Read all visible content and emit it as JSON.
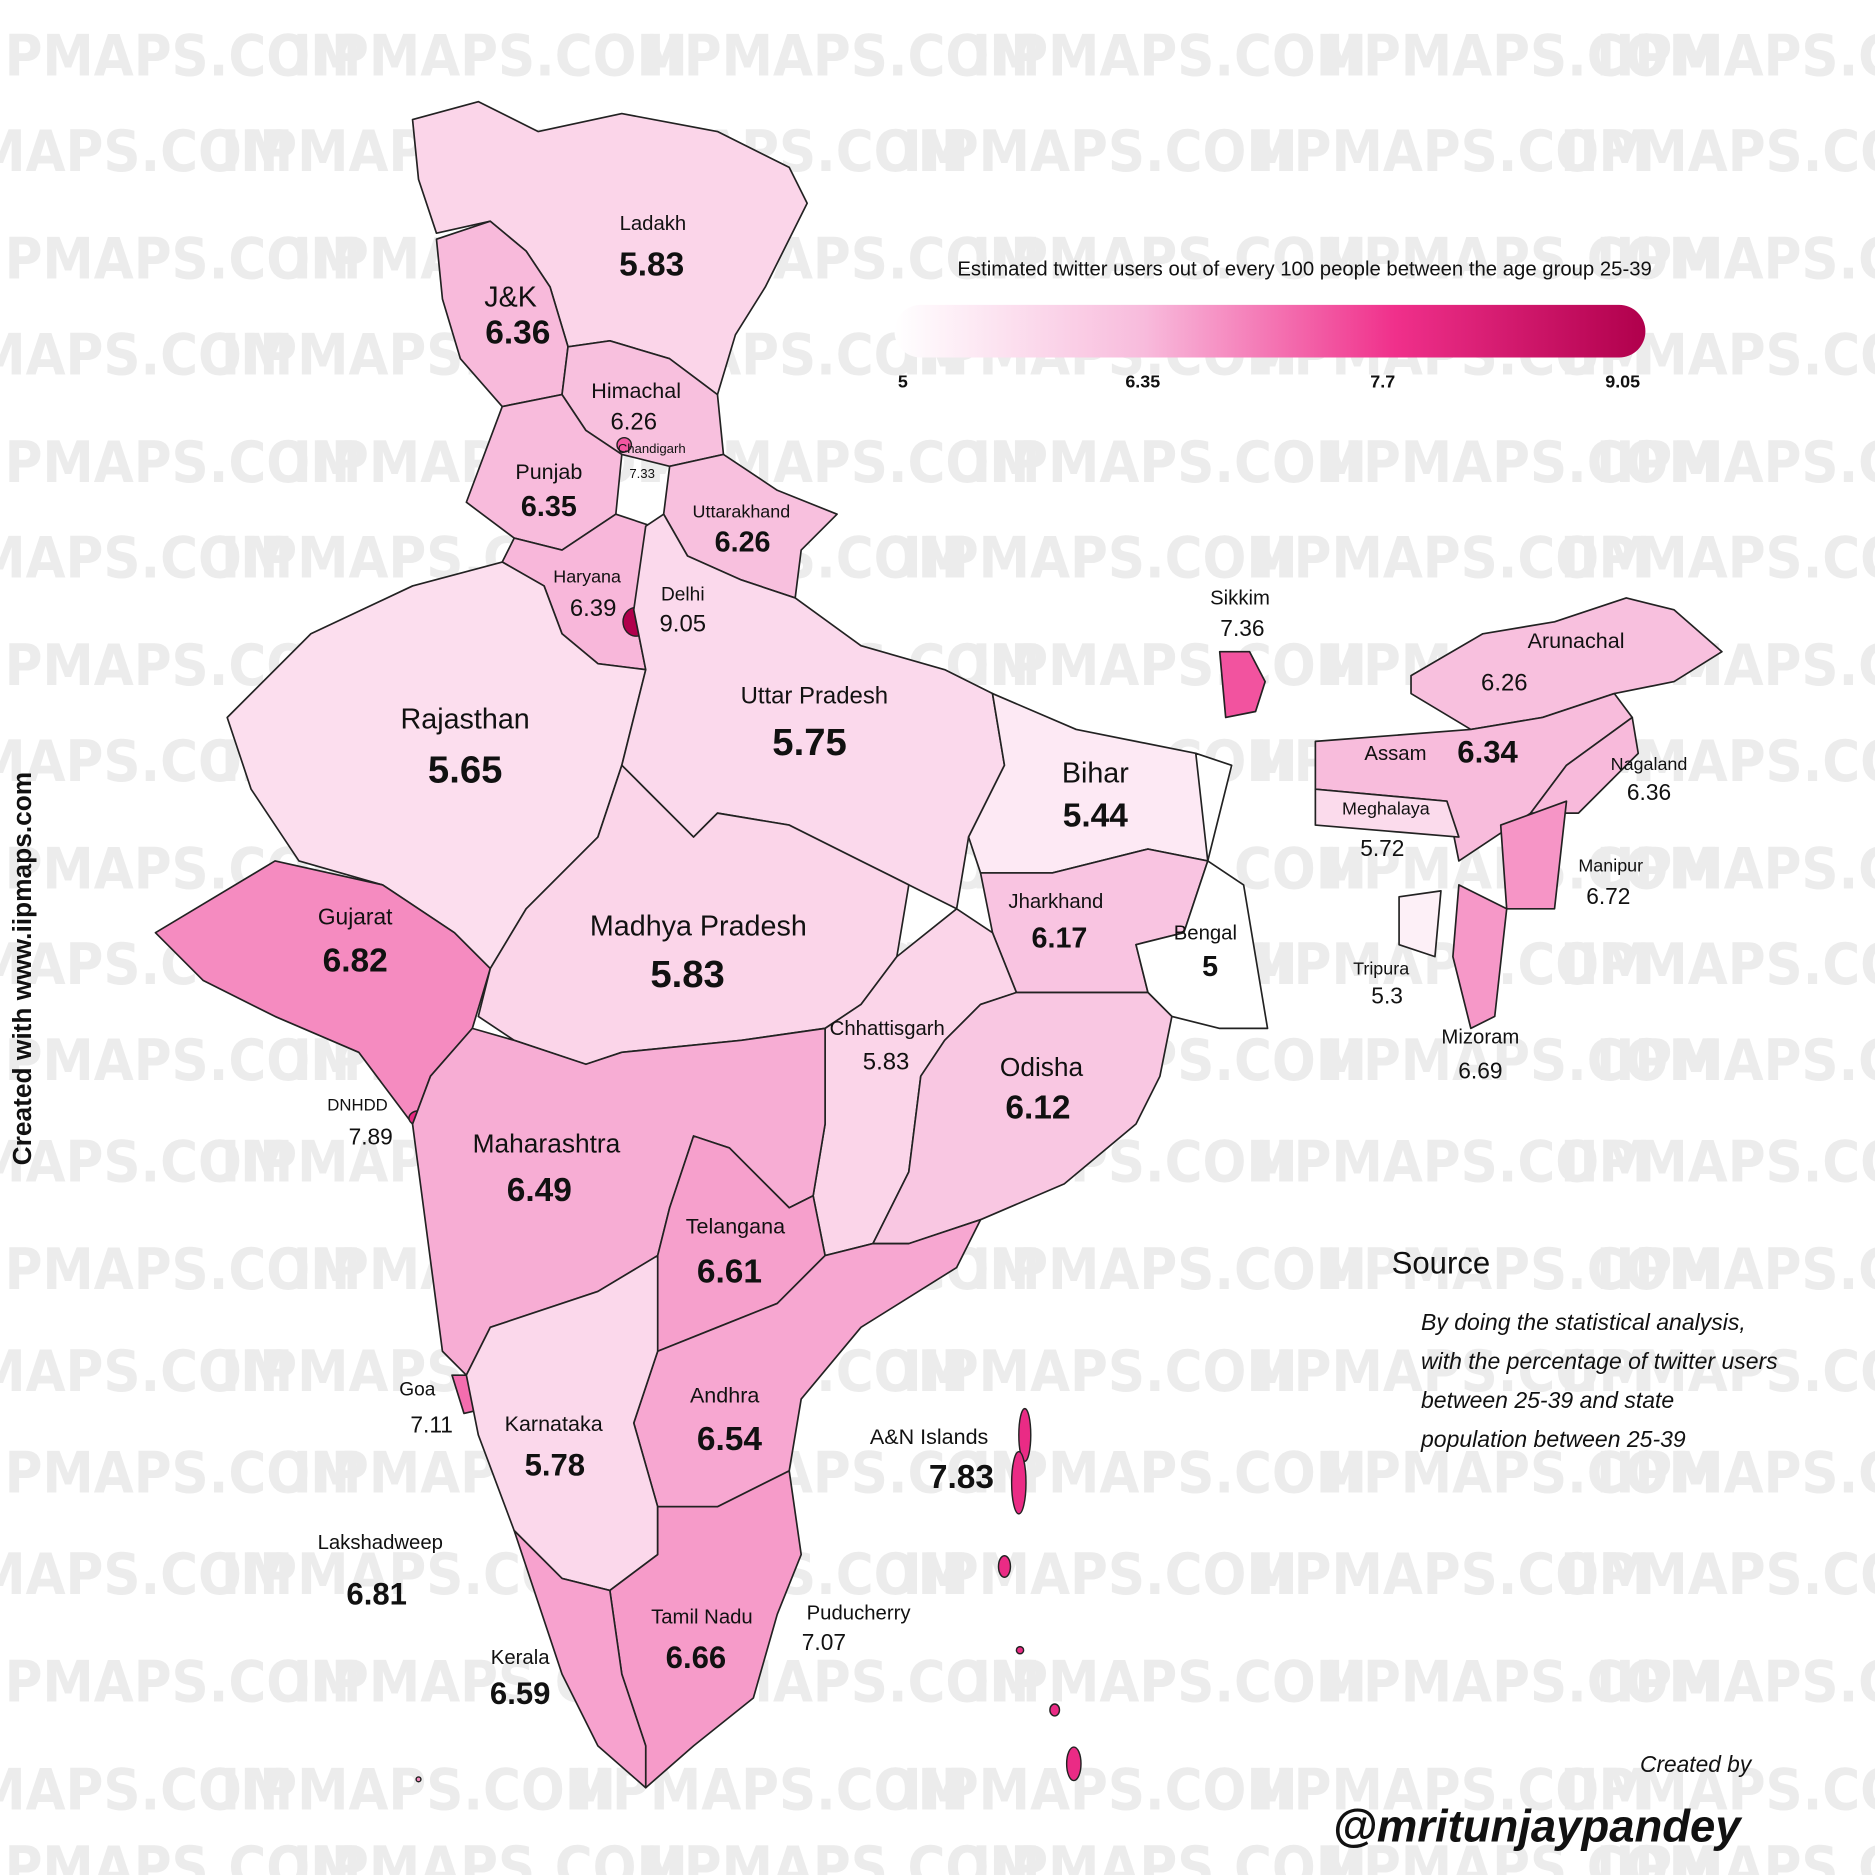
{
  "legend": {
    "title": "Estimated twitter users out of every 100 people between the age group 25-39",
    "ticks": [
      5,
      6.35,
      7.7,
      9.05
    ],
    "colors": [
      "#ffffff",
      "#f8bbdc",
      "#f0308b",
      "#b0004c"
    ]
  },
  "regions": [
    {
      "name": "Ladakh",
      "value": 5.83
    },
    {
      "name": "J&K",
      "value": 6.36
    },
    {
      "name": "Himachal",
      "value": 6.26
    },
    {
      "name": "Chandigarh",
      "value": 7.33
    },
    {
      "name": "Punjab",
      "value": 6.35
    },
    {
      "name": "Uttarakhand",
      "value": 6.26
    },
    {
      "name": "Haryana",
      "value": 6.39
    },
    {
      "name": "Delhi",
      "value": 9.05
    },
    {
      "name": "Rajasthan",
      "value": 5.65
    },
    {
      "name": "Uttar Pradesh",
      "value": 5.75
    },
    {
      "name": "Bihar",
      "value": 5.44
    },
    {
      "name": "Sikkim",
      "value": 7.36
    },
    {
      "name": "Arunachal",
      "value": 6.26
    },
    {
      "name": "Assam",
      "value": 6.34
    },
    {
      "name": "Nagaland",
      "value": 6.36
    },
    {
      "name": "Meghalaya",
      "value": 5.72
    },
    {
      "name": "Manipur",
      "value": 6.72
    },
    {
      "name": "Jharkhand",
      "value": 6.17
    },
    {
      "name": "Bengal",
      "value": 5
    },
    {
      "name": "Tripura",
      "value": 5.3
    },
    {
      "name": "Mizoram",
      "value": 6.69
    },
    {
      "name": "Gujarat",
      "value": 6.82
    },
    {
      "name": "Madhya Pradesh",
      "value": 5.83
    },
    {
      "name": "Chhattisgarh",
      "value": 5.83
    },
    {
      "name": "Odisha",
      "value": 6.12
    },
    {
      "name": "DNHDD",
      "value": 7.89
    },
    {
      "name": "Maharashtra",
      "value": 6.49
    },
    {
      "name": "Telangana",
      "value": 6.61
    },
    {
      "name": "Andhra",
      "value": 6.54
    },
    {
      "name": "Goa",
      "value": 7.11
    },
    {
      "name": "Karnataka",
      "value": 5.78
    },
    {
      "name": "A&N Islands",
      "value": 7.83
    },
    {
      "name": "Lakshadweep",
      "value": 6.81
    },
    {
      "name": "Puducherry",
      "value": 7.07
    },
    {
      "name": "Tamil Nadu",
      "value": 6.66
    },
    {
      "name": "Kerala",
      "value": 6.59
    }
  ],
  "source": {
    "heading": "Source",
    "text": "By doing the statistical analysis, with the percentage of twitter users between 25-39 and state population between 25-39"
  },
  "credit": {
    "label": "Created by",
    "handle": "@mritunjaypandey"
  },
  "side_note": "Created with www.iipmaps.com",
  "watermark": "IIPMAPS.COM"
}
